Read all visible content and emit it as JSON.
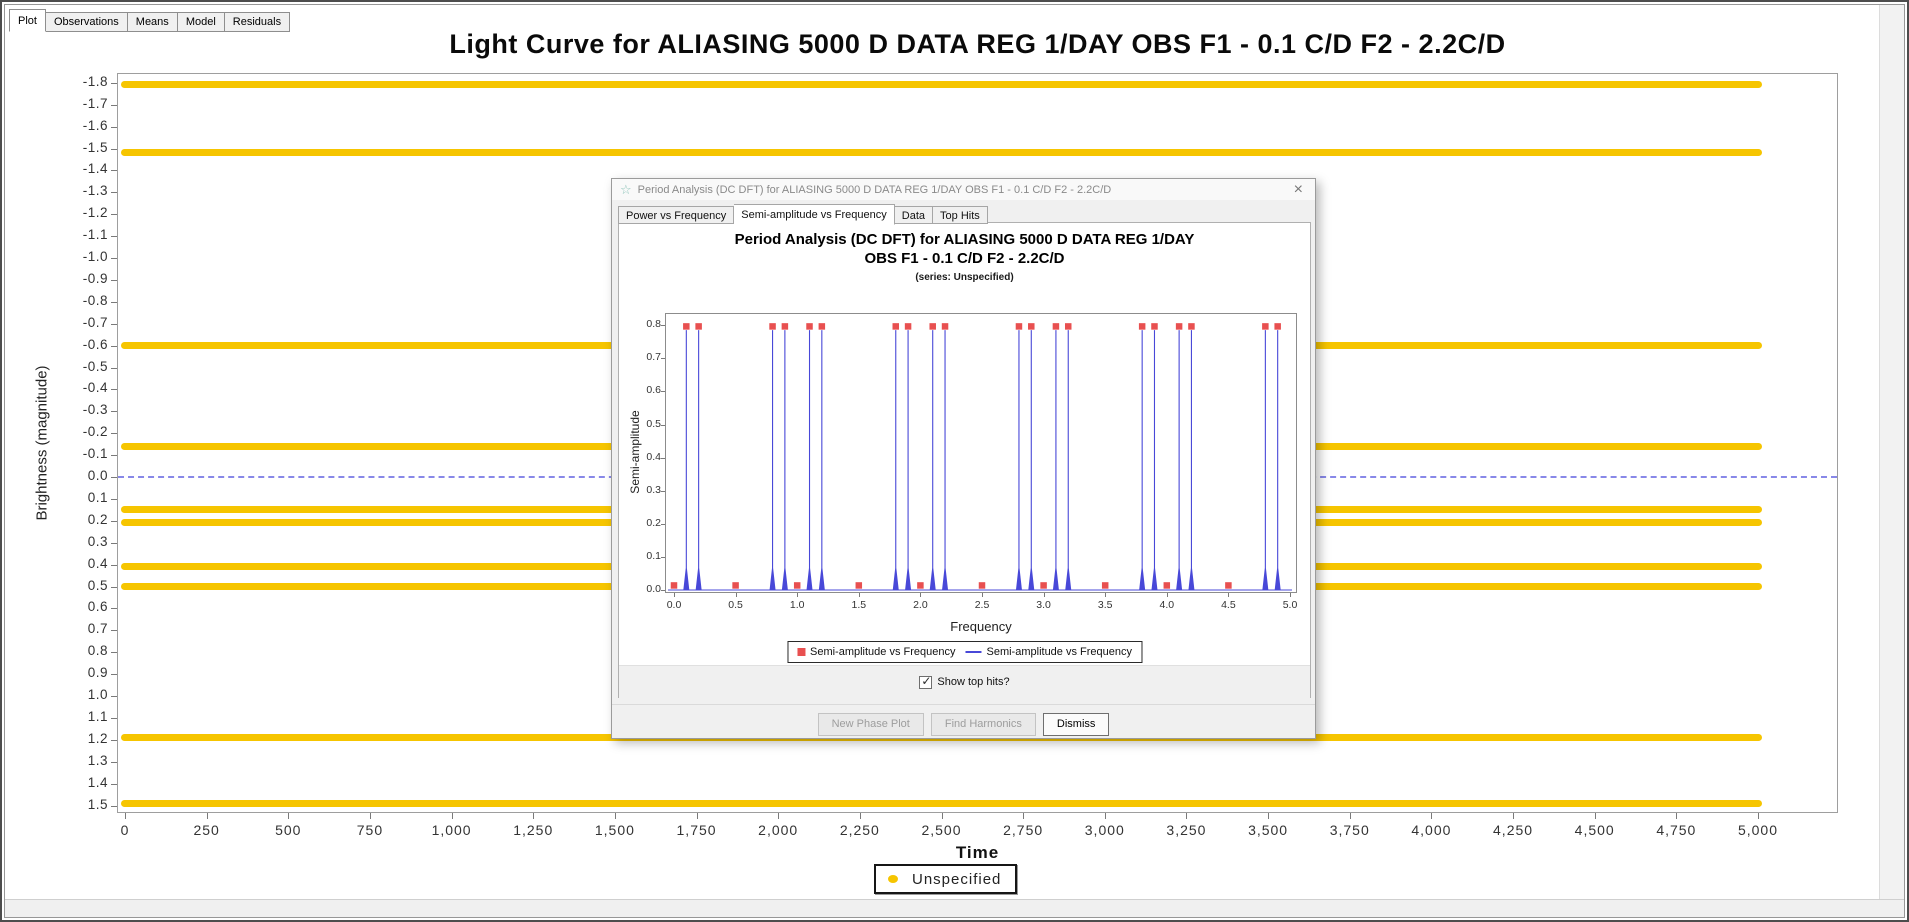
{
  "main_window": {
    "tabs": [
      "Plot",
      "Observations",
      "Means",
      "Model",
      "Residuals"
    ],
    "active_tab": "Plot"
  },
  "light_curve": {
    "title": "Light Curve for ALIASING 5000 D DATA REG 1/DAY OBS F1 - 0.1 C/D F2 - 2.2C/D",
    "xlabel": "Time",
    "ylabel": "Brightness (magnitude)",
    "legend_label": "Unspecified"
  },
  "dialog": {
    "title": "Period Analysis (DC DFT) for ALIASING 5000 D DATA REG 1/DAY OBS F1 - 0.1 C/D F2 - 2.2C/D",
    "tabs": [
      "Power vs Frequency",
      "Semi-amplitude vs Frequency",
      "Data",
      "Top Hits"
    ],
    "active_tab": "Semi-amplitude vs Frequency",
    "chart_title_line1": "Period Analysis (DC DFT) for ALIASING 5000 D DATA REG 1/DAY",
    "chart_title_line2": "OBS F1 - 0.1 C/D F2 - 2.2C/D",
    "chart_subtitle": "(series: Unspecified)",
    "xlabel": "Frequency",
    "ylabel": "Semi-amplitude",
    "legend_items": [
      {
        "label": "Semi-amplitude vs Frequency",
        "marker": "red-square"
      },
      {
        "label": "Semi-amplitude vs Frequency",
        "marker": "blue-line"
      }
    ],
    "checkbox_label": "Show top hits?",
    "checkbox_checked": true,
    "buttons": [
      {
        "label": "New Phase Plot",
        "enabled": false
      },
      {
        "label": "Find Harmonics",
        "enabled": false
      },
      {
        "label": "Dismiss",
        "enabled": true
      }
    ]
  },
  "icons": {
    "dialog_star": "☆",
    "dialog_close": "×",
    "checkbox_check": "✓"
  },
  "colors": {
    "series_yellow": "#F6C500",
    "spectrum_blue": "#4848D8",
    "top_hit_red": "#E85050",
    "zero_line_blue": "#8888E8"
  },
  "chart_data": [
    {
      "type": "scatter",
      "title": "Light Curve for ALIASING 5000 D DATA REG 1/DAY OBS F1 - 0.1 C/D F2 - 2.2C/D",
      "xlabel": "Time",
      "ylabel": "Brightness (magnitude)",
      "xlim": [
        0,
        5000
      ],
      "ylim_magnitude_inverted": [
        -1.8,
        1.5
      ],
      "x_ticks": {
        "min": 0,
        "max": 5000,
        "step": 250
      },
      "y_ticks": {
        "min": -1.8,
        "max": 1.5,
        "step": 0.1
      },
      "zero_reference_line": 0.0,
      "legend": [
        "Unspecified"
      ],
      "series": [
        {
          "name": "Unspecified",
          "color": "#F6C500",
          "time_range": [
            0,
            5000
          ],
          "band_magnitudes": [
            -1.79,
            -1.48,
            -0.6,
            -0.14,
            0.15,
            0.21,
            0.41,
            0.5,
            1.19,
            1.49
          ]
        }
      ]
    },
    {
      "type": "line",
      "title": "Period Analysis (DC DFT) for ALIASING 5000 D DATA REG 1/DAY OBS F1 - 0.1 C/D F2 - 2.2C/D",
      "subtitle": "(series: Unspecified)",
      "xlabel": "Frequency",
      "ylabel": "Semi-amplitude",
      "xlim": [
        0,
        5.05
      ],
      "ylim": [
        0,
        0.84
      ],
      "x_ticks": {
        "min": 0,
        "max": 5,
        "step": 0.5
      },
      "y_ticks": {
        "min": 0,
        "max": 0.8,
        "step": 0.1
      },
      "legend": [
        "Semi-amplitude vs Frequency",
        "Semi-amplitude vs Frequency"
      ],
      "peak_frequencies": [
        0.1,
        0.2,
        0.8,
        0.9,
        1.1,
        1.2,
        1.8,
        1.9,
        2.1,
        2.2,
        2.8,
        2.9,
        3.1,
        3.2,
        3.8,
        3.9,
        4.1,
        4.2,
        4.8,
        4.9
      ],
      "peak_semi_amplitude": 0.785,
      "baseline_top_hits": [
        0.0,
        0.5,
        1.0,
        1.5,
        2.0,
        2.5,
        3.0,
        3.5,
        4.0,
        4.5
      ],
      "baseline_semi_amplitude": 0.01
    }
  ]
}
